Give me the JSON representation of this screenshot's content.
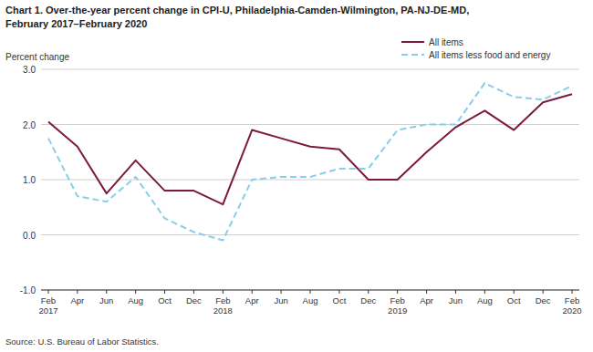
{
  "chart_data": {
    "type": "line",
    "title": "Chart 1. Over-the-year percent change in CPI-U, Philadelphia-Camden-Wilmington, PA-NJ-DE-MD,",
    "subtitle": "February 2017–February 2020",
    "y_label": "Percent change",
    "annotations": [
      "Source: U.S. Bureau of Labor Statistics."
    ],
    "categories": [
      "Feb\n2017",
      "Apr",
      "Jun",
      "Aug",
      "Oct",
      "Dec",
      "Feb\n2018",
      "Apr",
      "Jun",
      "Aug",
      "Oct",
      "Dec",
      "Feb\n2019",
      "Apr",
      "Jun",
      "Aug",
      "Oct",
      "Dec",
      "Feb\n2020"
    ],
    "series": [
      {
        "name": "All items",
        "color": "#7b1a3e",
        "line_style": "solid",
        "values": [
          2.05,
          1.6,
          0.75,
          1.35,
          0.8,
          0.8,
          0.55,
          1.9,
          1.75,
          1.6,
          1.55,
          1.0,
          1.0,
          1.5,
          1.95,
          2.25,
          1.9,
          2.4,
          2.55
        ]
      },
      {
        "name": "All items less food and energy",
        "color": "#87ceeb",
        "line_style": "dashed",
        "values": [
          1.75,
          0.7,
          0.6,
          1.05,
          0.3,
          0.05,
          -0.1,
          1.0,
          1.05,
          1.05,
          1.2,
          1.2,
          1.9,
          2.0,
          2.0,
          2.75,
          2.5,
          2.45,
          2.7
        ]
      }
    ],
    "ylim": [
      -1.0,
      3.0
    ],
    "yticks": [
      {
        "value": -1.0,
        "label": "-1.0"
      },
      {
        "value": 0.0,
        "label": "0.0"
      },
      {
        "value": 1.0,
        "label": "1.0"
      },
      {
        "value": 2.0,
        "label": "2.0"
      },
      {
        "value": 3.0,
        "label": "3.0"
      }
    ],
    "grid": true,
    "legend": "upper right"
  }
}
